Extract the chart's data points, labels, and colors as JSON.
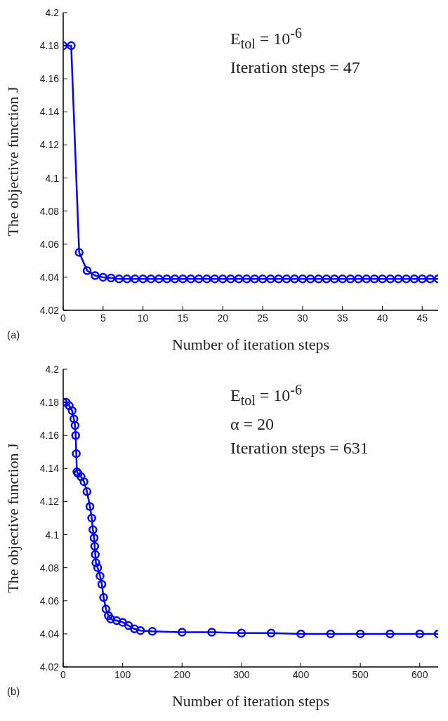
{
  "chart_data": [
    {
      "type": "line",
      "xlabel": "Number of iteration steps",
      "ylabel": "The objective function J",
      "marker": "circle",
      "line_style": "solid",
      "annotations": [
        "E$_{tol}$ = 10$^{-6}$",
        "Iteration steps = 47",
        "(a)"
      ],
      "xlim": [
        0,
        47
      ],
      "xticks": [
        0,
        5,
        10,
        15,
        20,
        25,
        30,
        35,
        40,
        45
      ],
      "ylim": [
        4.02,
        4.2
      ],
      "yticks": [
        4.02,
        4.04,
        4.06,
        4.08,
        4.1,
        4.12,
        4.14,
        4.16,
        4.18,
        4.2
      ],
      "x": [
        0,
        1,
        2,
        3,
        4,
        5,
        6,
        7,
        8,
        9,
        10,
        11,
        12,
        13,
        14,
        15,
        16,
        17,
        18,
        19,
        20,
        21,
        22,
        23,
        24,
        25,
        26,
        27,
        28,
        29,
        30,
        31,
        32,
        33,
        34,
        35,
        36,
        37,
        38,
        39,
        40,
        41,
        42,
        43,
        44,
        45,
        46,
        47
      ],
      "series": [
        {
          "color": "#0000ff",
          "values": [
            4.18,
            4.18,
            4.055,
            4.044,
            4.041,
            4.04,
            4.0395,
            4.039,
            4.039,
            4.039,
            4.039,
            4.039,
            4.039,
            4.039,
            4.039,
            4.039,
            4.039,
            4.039,
            4.039,
            4.039,
            4.039,
            4.039,
            4.039,
            4.039,
            4.039,
            4.039,
            4.039,
            4.039,
            4.039,
            4.039,
            4.039,
            4.039,
            4.039,
            4.039,
            4.039,
            4.039,
            4.039,
            4.039,
            4.039,
            4.039,
            4.039,
            4.039,
            4.039,
            4.039,
            4.039,
            4.039,
            4.039,
            4.039
          ]
        }
      ]
    },
    {
      "type": "line",
      "xlabel": "Number of iteration steps",
      "ylabel": "The objective function J",
      "marker": "circle",
      "line_style": "solid",
      "annotations": [
        "E$_{tol}$ = 10$^{-6}$",
        "α = 20",
        "Iteration steps = 631",
        "(b)"
      ],
      "xlim": [
        0,
        631
      ],
      "xticks": [
        0,
        100,
        200,
        300,
        400,
        500,
        600
      ],
      "ylim": [
        4.02,
        4.2
      ],
      "yticks": [
        4.02,
        4.04,
        4.06,
        4.08,
        4.1,
        4.12,
        4.14,
        4.16,
        4.18,
        4.2
      ],
      "x": [
        0,
        5,
        10,
        15,
        18,
        20,
        21,
        22,
        23,
        25,
        30,
        35,
        40,
        45,
        48,
        50,
        52,
        53,
        54,
        55,
        58,
        62,
        65,
        68,
        72,
        76,
        80,
        90,
        100,
        110,
        120,
        130,
        150,
        200,
        250,
        300,
        350,
        400,
        450,
        500,
        550,
        600,
        631
      ],
      "series": [
        {
          "color": "#0000ff",
          "values": [
            4.18,
            4.18,
            4.178,
            4.175,
            4.17,
            4.166,
            4.16,
            4.149,
            4.138,
            4.137,
            4.135,
            4.132,
            4.126,
            4.117,
            4.11,
            4.103,
            4.098,
            4.093,
            4.088,
            4.083,
            4.08,
            4.075,
            4.07,
            4.062,
            4.055,
            4.051,
            4.049,
            4.048,
            4.047,
            4.045,
            4.043,
            4.042,
            4.0415,
            4.041,
            4.041,
            4.0405,
            4.0405,
            4.04,
            4.04,
            4.04,
            4.04,
            4.04,
            4.04
          ]
        }
      ]
    }
  ]
}
